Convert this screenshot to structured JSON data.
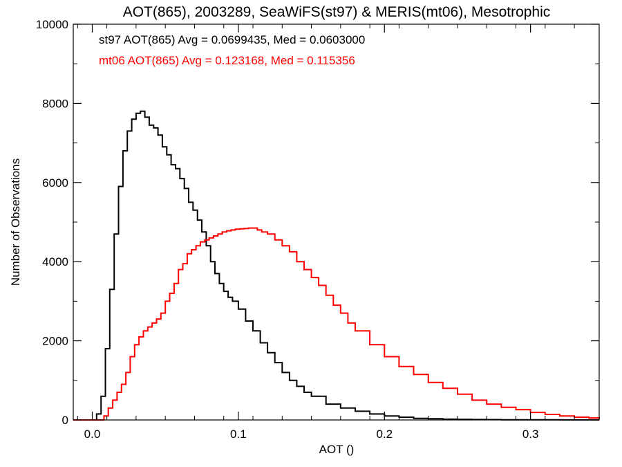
{
  "chart_data": {
    "type": "line",
    "title": "AOT(865), 2003289, SeaWiFS(st97) & MERIS(mt06), Mesotrophic",
    "xlabel": "AOT ()",
    "ylabel": "Number of Observations",
    "xlim": [
      -0.013,
      0.347
    ],
    "ylim": [
      0,
      10000
    ],
    "xticks": [
      0.0,
      0.1,
      0.2,
      0.3
    ],
    "xtick_labels": [
      "0.0",
      "0.1",
      "0.2",
      "0.3"
    ],
    "yticks": [
      0,
      2000,
      4000,
      6000,
      8000,
      10000
    ],
    "ytick_labels": [
      "0",
      "2000",
      "4000",
      "6000",
      "8000",
      "10000"
    ],
    "grid": false,
    "annotations": [
      {
        "text": "st97 AOT(865) Avg = 0.0699435, Med = 0.0603000",
        "color": "#000000"
      },
      {
        "text": "mt06 AOT(865) Avg = 0.123168, Med = 0.115356",
        "color": "#ff0000"
      }
    ],
    "series": [
      {
        "color": "#000000",
        "x": [
          -0.013,
          0.0,
          0.003,
          0.006,
          0.009,
          0.012,
          0.015,
          0.018,
          0.021,
          0.024,
          0.027,
          0.03,
          0.033,
          0.036,
          0.039,
          0.042,
          0.045,
          0.048,
          0.051,
          0.054,
          0.057,
          0.06,
          0.063,
          0.066,
          0.069,
          0.072,
          0.075,
          0.078,
          0.081,
          0.084,
          0.087,
          0.09,
          0.093,
          0.096,
          0.1,
          0.105,
          0.11,
          0.115,
          0.12,
          0.125,
          0.13,
          0.135,
          0.14,
          0.145,
          0.15,
          0.16,
          0.17,
          0.18,
          0.19,
          0.2,
          0.21,
          0.22,
          0.23,
          0.24,
          0.25,
          0.26,
          0.27,
          0.28,
          0.29,
          0.3,
          0.32,
          0.347
        ],
        "y": [
          0,
          0,
          150,
          600,
          1800,
          3300,
          4700,
          5900,
          6800,
          7300,
          7600,
          7750,
          7800,
          7650,
          7450,
          7380,
          7200,
          6900,
          6700,
          6450,
          6350,
          6100,
          5850,
          5500,
          5300,
          5050,
          4750,
          4400,
          4000,
          3700,
          3450,
          3250,
          3100,
          3000,
          2800,
          2500,
          2250,
          1950,
          1700,
          1450,
          1200,
          1000,
          850,
          700,
          600,
          400,
          300,
          220,
          150,
          100,
          70,
          40,
          30,
          20,
          15,
          10,
          8,
          5,
          4,
          3,
          2,
          1
        ]
      },
      {
        "color": "#ff0000",
        "x": [
          -0.013,
          0.005,
          0.008,
          0.011,
          0.014,
          0.017,
          0.02,
          0.023,
          0.026,
          0.029,
          0.032,
          0.035,
          0.038,
          0.041,
          0.044,
          0.047,
          0.05,
          0.053,
          0.056,
          0.059,
          0.062,
          0.065,
          0.068,
          0.071,
          0.074,
          0.077,
          0.08,
          0.083,
          0.086,
          0.089,
          0.092,
          0.095,
          0.098,
          0.101,
          0.104,
          0.107,
          0.11,
          0.113,
          0.116,
          0.12,
          0.125,
          0.13,
          0.135,
          0.14,
          0.145,
          0.15,
          0.155,
          0.16,
          0.165,
          0.17,
          0.175,
          0.18,
          0.19,
          0.2,
          0.21,
          0.22,
          0.23,
          0.24,
          0.25,
          0.26,
          0.27,
          0.28,
          0.29,
          0.3,
          0.31,
          0.32,
          0.33,
          0.34,
          0.347
        ],
        "y": [
          0,
          0,
          100,
          300,
          500,
          700,
          900,
          1200,
          1600,
          1900,
          2100,
          2250,
          2350,
          2450,
          2550,
          2700,
          3000,
          3200,
          3450,
          3800,
          3950,
          4200,
          4300,
          4400,
          4500,
          4550,
          4600,
          4650,
          4700,
          4750,
          4780,
          4800,
          4820,
          4830,
          4840,
          4850,
          4850,
          4800,
          4750,
          4700,
          4550,
          4400,
          4250,
          4000,
          3800,
          3600,
          3400,
          3150,
          2900,
          2700,
          2450,
          2250,
          1900,
          1600,
          1350,
          1150,
          950,
          800,
          650,
          500,
          400,
          320,
          260,
          190,
          140,
          100,
          70,
          50,
          30
        ]
      }
    ]
  }
}
